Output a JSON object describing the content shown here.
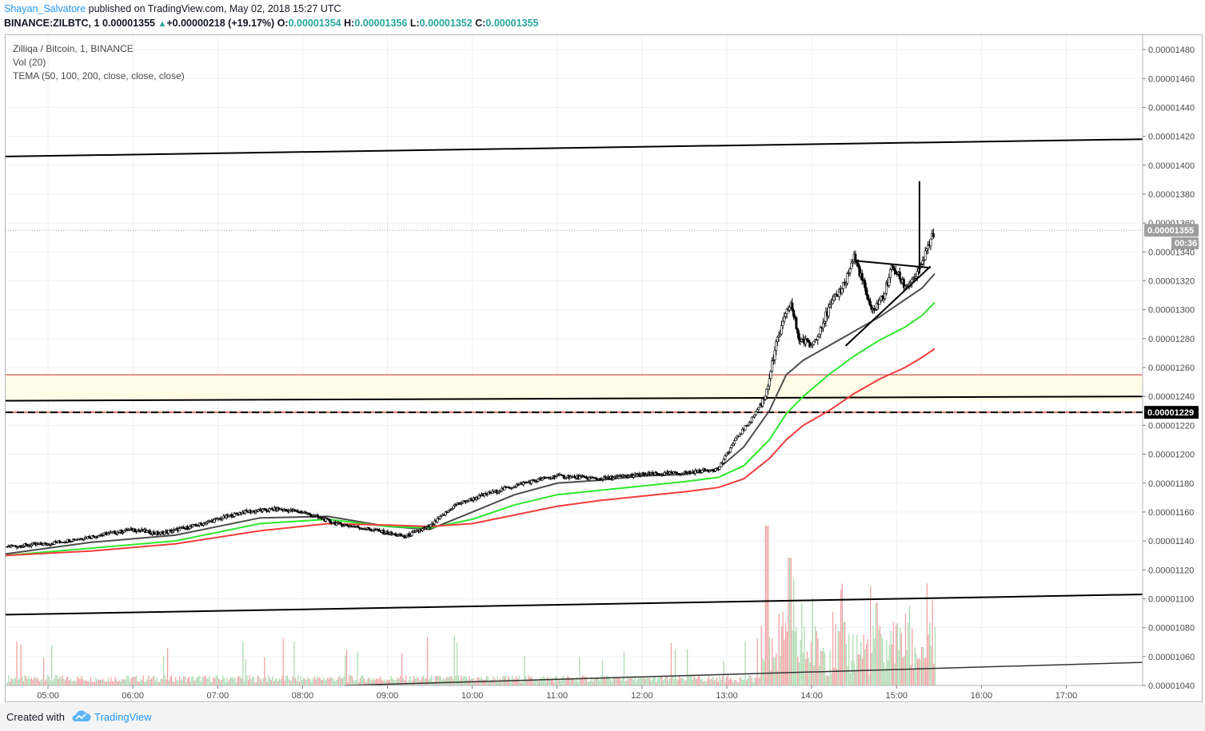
{
  "header": {
    "author": "Shayan_Salvatore",
    "published_text": " published on TradingView.com, May 02, 2018 15:27 UTC",
    "symbol": "BINANCE:ZILBTC, 1",
    "price": "0.00001355",
    "arrow": "▲",
    "change": "+0.00000218 (+19.17%)",
    "o_label": "O:",
    "o_value": "0.00001354",
    "h_label": "H:",
    "h_value": "0.00001356",
    "l_label": "L:",
    "l_value": "0.00001352",
    "c_label": "C:",
    "c_value": "0.00001355"
  },
  "legend": {
    "pair": "Zilliqa / Bitcoin, 1, BINANCE",
    "volume": "Vol (20)",
    "tema": "TEMA (50, 100, 200, close, close, close)"
  },
  "footer": {
    "created_with": "Created with",
    "brand": "TradingView"
  },
  "colors": {
    "tema_fast": "#4c4c4c",
    "tema_mid": "#2ee82e",
    "tema_slow": "#f23c3c",
    "resistance_zone": "#fffde7",
    "zone_edge": "#c62828",
    "vol_up": "#a5d6a7",
    "vol_down": "#ef9a9a",
    "author": "#2196f3",
    "up": "#26a69a"
  },
  "chart_data": {
    "type": "candlestick",
    "title": "Zilliqa / Bitcoin, 1, BINANCE",
    "y_axis": {
      "ticks": [
        "0.00001480",
        "0.00001460",
        "0.00001440",
        "0.00001420",
        "0.00001400",
        "0.00001380",
        "0.00001360",
        "0.00001340",
        "0.00001320",
        "0.00001300",
        "0.00001280",
        "0.00001260",
        "0.00001240",
        "0.00001220",
        "0.00001200",
        "0.00001180",
        "0.00001160",
        "0.00001140",
        "0.00001120",
        "0.00001100",
        "0.00001080",
        "0.00001060",
        "0.00001040"
      ],
      "range": [
        1.04e-05,
        1.49e-05
      ]
    },
    "x_axis": {
      "ticks": [
        "05:00",
        "06:00",
        "07:00",
        "08:00",
        "09:00",
        "10:00",
        "11:00",
        "12:00",
        "13:00",
        "14:00",
        "15:00",
        "16:00",
        "17:00"
      ],
      "range_hours": [
        4.5,
        17.9
      ]
    },
    "last_price_label": "0.00001355",
    "countdown_label": "00:36",
    "marked_level_label": "0.00001229",
    "marked_level": 1.229e-05,
    "last_price": 1.355e-05,
    "price_path": [
      [
        4.5,
        1.136e-05
      ],
      [
        5.0,
        1.138e-05
      ],
      [
        5.5,
        1.143e-05
      ],
      [
        6.0,
        1.148e-05
      ],
      [
        6.3,
        1.145e-05
      ],
      [
        6.7,
        1.15e-05
      ],
      [
        7.0,
        1.155e-05
      ],
      [
        7.3,
        1.16e-05
      ],
      [
        7.7,
        1.162e-05
      ],
      [
        8.0,
        1.16e-05
      ],
      [
        8.4,
        1.152e-05
      ],
      [
        8.8,
        1.148e-05
      ],
      [
        9.2,
        1.143e-05
      ],
      [
        9.5,
        1.15e-05
      ],
      [
        9.8,
        1.165e-05
      ],
      [
        10.2,
        1.173e-05
      ],
      [
        10.6,
        1.18e-05
      ],
      [
        11.0,
        1.185e-05
      ],
      [
        11.5,
        1.183e-05
      ],
      [
        12.0,
        1.186e-05
      ],
      [
        12.5,
        1.187e-05
      ],
      [
        12.9,
        1.19e-05
      ],
      [
        13.1,
        1.21e-05
      ],
      [
        13.3,
        1.225e-05
      ],
      [
        13.45,
        1.24e-05
      ],
      [
        13.6,
        1.28e-05
      ],
      [
        13.75,
        1.305e-05
      ],
      [
        13.85,
        1.28e-05
      ],
      [
        14.0,
        1.275e-05
      ],
      [
        14.2,
        1.3e-05
      ],
      [
        14.4,
        1.32e-05
      ],
      [
        14.5,
        1.337e-05
      ],
      [
        14.6,
        1.32e-05
      ],
      [
        14.7,
        1.298e-05
      ],
      [
        14.85,
        1.31e-05
      ],
      [
        14.95,
        1.33e-05
      ],
      [
        15.1,
        1.316e-05
      ],
      [
        15.25,
        1.325e-05
      ],
      [
        15.35,
        1.34e-05
      ],
      [
        15.45,
        1.355e-05
      ]
    ],
    "spike": {
      "x": 15.27,
      "high": 1.389e-05,
      "low": 1.325e-05
    },
    "series": [
      {
        "name": "TEMA 50",
        "points": [
          [
            4.5,
            1.131e-05
          ],
          [
            5.5,
            1.139e-05
          ],
          [
            6.5,
            1.144e-05
          ],
          [
            7.5,
            1.156e-05
          ],
          [
            8.3,
            1.157e-05
          ],
          [
            9.0,
            1.15e-05
          ],
          [
            9.5,
            1.148e-05
          ],
          [
            10.0,
            1.16e-05
          ],
          [
            10.5,
            1.172e-05
          ],
          [
            11.0,
            1.18e-05
          ],
          [
            11.5,
            1.182e-05
          ],
          [
            12.0,
            1.185e-05
          ],
          [
            12.5,
            1.186e-05
          ],
          [
            12.9,
            1.19e-05
          ],
          [
            13.2,
            1.205e-05
          ],
          [
            13.5,
            1.23e-05
          ],
          [
            13.7,
            1.255e-05
          ],
          [
            13.9,
            1.265e-05
          ],
          [
            14.2,
            1.275e-05
          ],
          [
            14.5,
            1.285e-05
          ],
          [
            14.8,
            1.295e-05
          ],
          [
            15.1,
            1.307e-05
          ],
          [
            15.3,
            1.315e-05
          ],
          [
            15.45,
            1.325e-05
          ]
        ]
      },
      {
        "name": "TEMA 100",
        "points": [
          [
            4.5,
            1.13e-05
          ],
          [
            5.5,
            1.135e-05
          ],
          [
            6.5,
            1.14e-05
          ],
          [
            7.5,
            1.152e-05
          ],
          [
            8.3,
            1.155e-05
          ],
          [
            9.0,
            1.15e-05
          ],
          [
            9.5,
            1.149e-05
          ],
          [
            10.0,
            1.155e-05
          ],
          [
            10.5,
            1.165e-05
          ],
          [
            11.0,
            1.172e-05
          ],
          [
            11.5,
            1.175e-05
          ],
          [
            12.0,
            1.178e-05
          ],
          [
            12.5,
            1.181e-05
          ],
          [
            12.9,
            1.184e-05
          ],
          [
            13.2,
            1.192e-05
          ],
          [
            13.5,
            1.21e-05
          ],
          [
            13.7,
            1.228e-05
          ],
          [
            13.9,
            1.24e-05
          ],
          [
            14.2,
            1.255e-05
          ],
          [
            14.5,
            1.268e-05
          ],
          [
            14.8,
            1.279e-05
          ],
          [
            15.1,
            1.288e-05
          ],
          [
            15.3,
            1.296e-05
          ],
          [
            15.45,
            1.305e-05
          ]
        ]
      },
      {
        "name": "TEMA 200",
        "points": [
          [
            4.5,
            1.13e-05
          ],
          [
            5.5,
            1.133e-05
          ],
          [
            6.5,
            1.138e-05
          ],
          [
            7.5,
            1.147e-05
          ],
          [
            8.3,
            1.152e-05
          ],
          [
            9.0,
            1.151e-05
          ],
          [
            9.5,
            1.15e-05
          ],
          [
            10.0,
            1.152e-05
          ],
          [
            10.5,
            1.158e-05
          ],
          [
            11.0,
            1.164e-05
          ],
          [
            11.5,
            1.168e-05
          ],
          [
            12.0,
            1.171e-05
          ],
          [
            12.5,
            1.174e-05
          ],
          [
            12.9,
            1.177e-05
          ],
          [
            13.2,
            1.183e-05
          ],
          [
            13.5,
            1.197e-05
          ],
          [
            13.7,
            1.21e-05
          ],
          [
            13.9,
            1.22e-05
          ],
          [
            14.2,
            1.23e-05
          ],
          [
            14.5,
            1.242e-05
          ],
          [
            14.8,
            1.252e-05
          ],
          [
            15.1,
            1.26e-05
          ],
          [
            15.3,
            1.267e-05
          ],
          [
            15.45,
            1.273e-05
          ]
        ]
      }
    ],
    "drawings": {
      "upper_resistance": [
        [
          4.5,
          1.406e-05
        ],
        [
          17.9,
          1.418e-05
        ]
      ],
      "channel_support": [
        [
          4.5,
          1.089e-05
        ],
        [
          17.9,
          1.103e-05
        ]
      ],
      "volume_trend": [
        [
          8.5,
          1.04e-05
        ],
        [
          17.9,
          1.056e-05
        ]
      ],
      "support_line": [
        [
          4.5,
          1.237e-05
        ],
        [
          17.9,
          1.24e-05
        ]
      ],
      "zone": [
        1.237e-05,
        1.255e-05
      ],
      "triangle_top": [
        [
          14.5,
          1.334e-05
        ],
        [
          15.4,
          1.329e-05
        ]
      ],
      "triangle_bottom": [
        [
          14.4,
          1.275e-05
        ],
        [
          15.4,
          1.33e-05
        ]
      ]
    }
  }
}
